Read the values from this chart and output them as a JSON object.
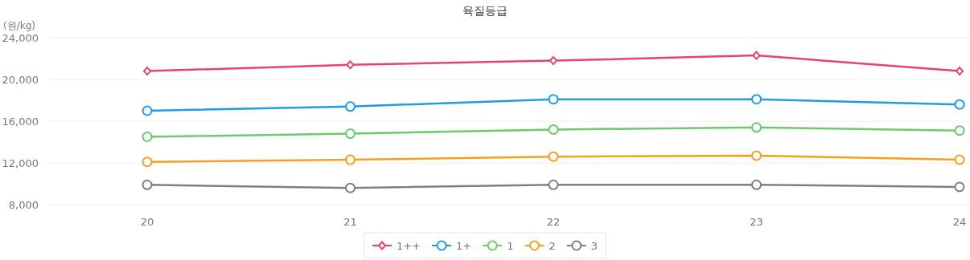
{
  "chart_data": {
    "type": "line",
    "title": "육질등급",
    "ylabel": "(원/kg)",
    "categories": [
      "20",
      "21",
      "22",
      "23",
      "24"
    ],
    "series": [
      {
        "name": "1++",
        "color": "#e8436e",
        "marker": "diamond",
        "values": [
          20800,
          21400,
          21800,
          22300,
          20800
        ]
      },
      {
        "name": "1+",
        "color": "#1e9be9",
        "marker": "circle",
        "values": [
          17000,
          17400,
          18100,
          18100,
          17600
        ]
      },
      {
        "name": "1",
        "color": "#6cc96c",
        "marker": "circle",
        "values": [
          14500,
          14800,
          15200,
          15400,
          15100
        ]
      },
      {
        "name": "2",
        "color": "#f5a01f",
        "marker": "circle",
        "values": [
          12100,
          12300,
          12600,
          12700,
          12300
        ]
      },
      {
        "name": "3",
        "color": "#808080",
        "marker": "circle",
        "values": [
          9900,
          9600,
          9900,
          9900,
          9700
        ]
      }
    ],
    "ylim": [
      8000,
      24000
    ],
    "yticks": [
      {
        "value": 8000,
        "label": "8,000"
      },
      {
        "value": 12000,
        "label": "12,000"
      },
      {
        "value": 16000,
        "label": "16,000"
      },
      {
        "value": 20000,
        "label": "20,000"
      },
      {
        "value": 24000,
        "label": "24,000"
      }
    ],
    "grid": "y",
    "legend": "bottom"
  }
}
